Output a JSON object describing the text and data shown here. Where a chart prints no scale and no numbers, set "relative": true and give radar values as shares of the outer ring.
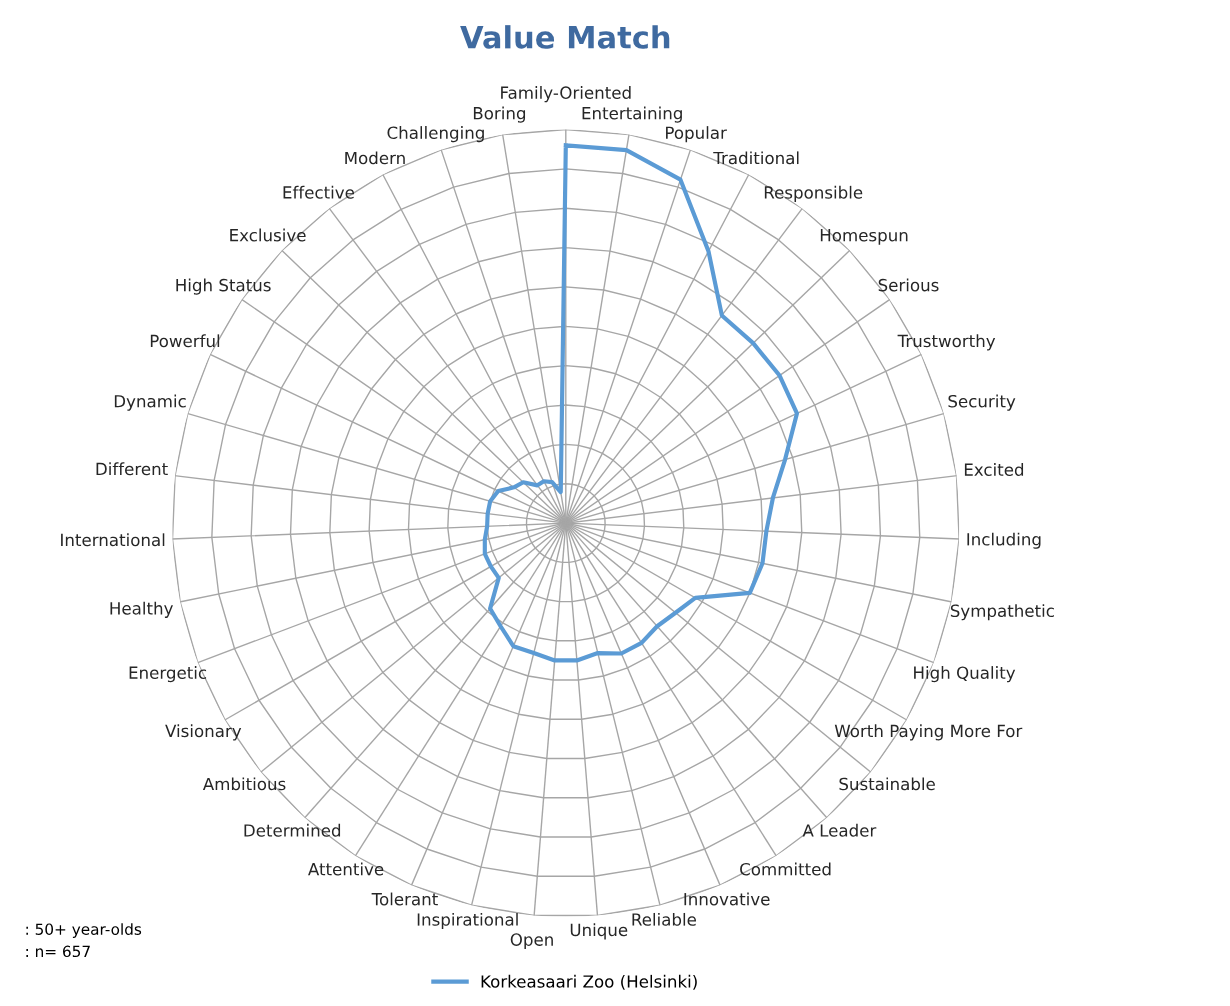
{
  "chart_data": {
    "type": "radar",
    "title": "Value Match",
    "relative": true,
    "grid": true,
    "legend": "bottom",
    "marker": "none",
    "line_style": "solid",
    "categories": [
      "Family-Oriented",
      "Entertaining",
      "Popular",
      "Traditional",
      "Responsible",
      "Homespun",
      "Serious",
      "Trustworthy",
      "Security",
      "Excited",
      "Including",
      "Sympathetic",
      "High Quality",
      "Worth Paying More For",
      "Sustainable",
      "A Leader",
      "Committed",
      "Innovative",
      "Reliable",
      "Unique",
      "Open",
      "Inspirational",
      "Tolerant",
      "Attentive",
      "Determined",
      "Ambitious",
      "Visionary",
      "Energetic",
      "Healthy",
      "International",
      "Different",
      "Dynamic",
      "Powerful",
      "High Status",
      "Exclusive",
      "Effective",
      "Modern",
      "Challenging",
      "Boring"
    ],
    "series": [
      {
        "name": "Korkeasaari Zoo (Helsinki)",
        "color": "#5b9bd5",
        "values": [
          0.96,
          0.96,
          0.92,
          0.78,
          0.66,
          0.66,
          0.66,
          0.65,
          0.58,
          0.53,
          0.51,
          0.51,
          0.5,
          0.38,
          0.36,
          0.35,
          0.36,
          0.36,
          0.34,
          0.35,
          0.35,
          0.34,
          0.34,
          0.31,
          0.29,
          0.22,
          0.22,
          0.22,
          0.21,
          0.2,
          0.2,
          0.2,
          0.19,
          0.16,
          0.15,
          0.12,
          0.12,
          0.11,
          0.08
        ]
      }
    ],
    "annotations": [
      ": 50+ year-olds",
      ": n= 657"
    ]
  }
}
